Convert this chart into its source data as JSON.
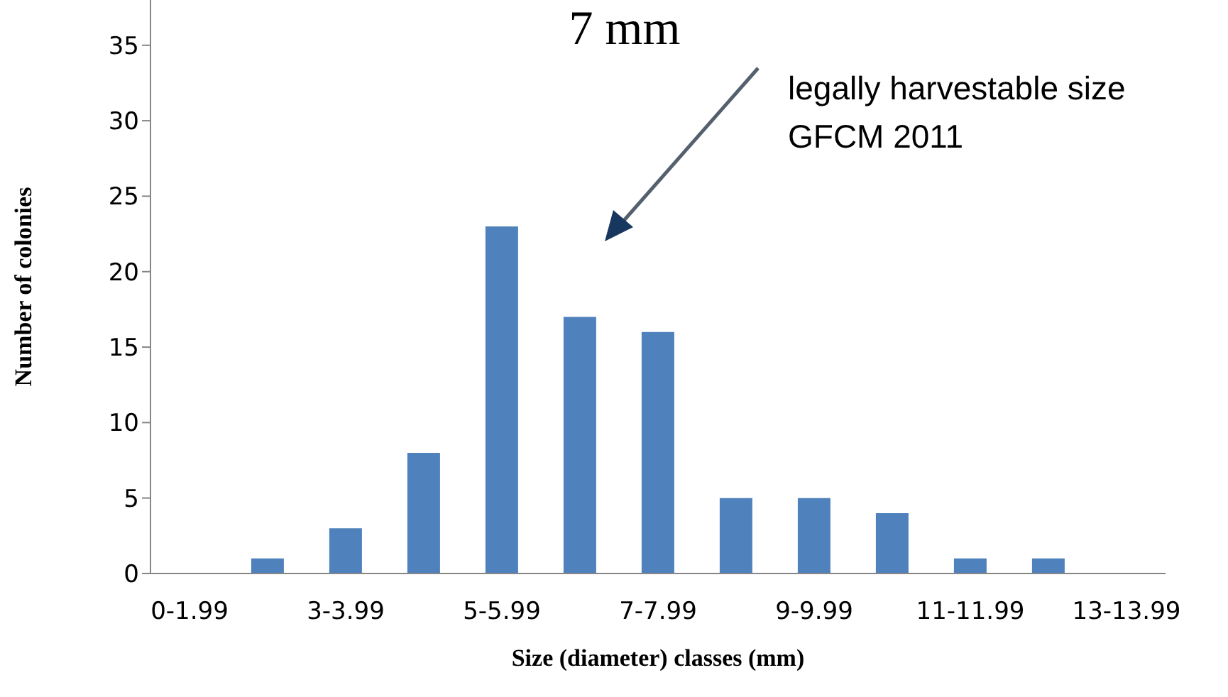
{
  "chart_data": {
    "type": "bar",
    "xlabel": "Size (diameter)  classes (mm)",
    "ylabel": "Number of colonies",
    "categories": [
      "0-1.99",
      null,
      "3-3.99",
      null,
      "5-5.99",
      null,
      "7-7.99",
      null,
      "9-9.99",
      null,
      "11-11.99",
      null,
      "13-13.99"
    ],
    "values": [
      0,
      1,
      3,
      8,
      23,
      17,
      16,
      5,
      5,
      4,
      1,
      1,
      0
    ],
    "color": "#4f81bd",
    "ylim": [
      0,
      38
    ],
    "yticks": [
      0,
      5,
      10,
      15,
      20,
      25,
      30,
      35
    ],
    "annotations": [
      "7 mm",
      "legally harvestable size\nGFCM 2011"
    ]
  }
}
